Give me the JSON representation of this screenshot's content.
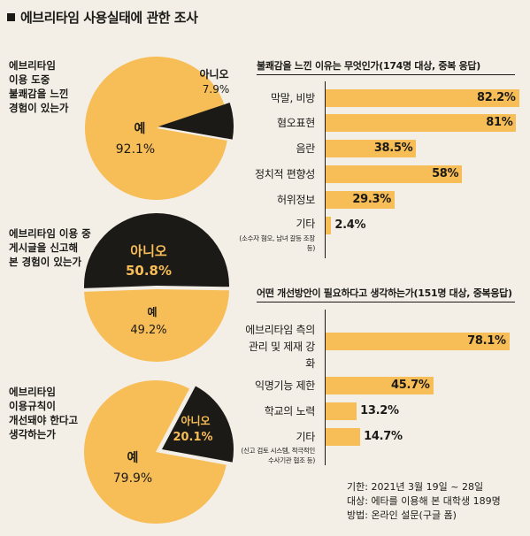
{
  "title": "에브리타임 사용실태에 관한 조사",
  "colors": {
    "yes": "#f7bd56",
    "no": "#1c1a17",
    "bar": "#f7bd56",
    "background": "#f3efe7"
  },
  "chart_data": [
    {
      "type": "pie",
      "question_lines": [
        "에브리타임",
        "이용 도중",
        "불쾌감을 느낀",
        "경험이 있는가"
      ],
      "slices": [
        {
          "label": "예",
          "value": 92.1,
          "value_text": "92.1%"
        },
        {
          "label": "아니오",
          "value": 7.9,
          "value_text": "7.9%"
        }
      ]
    },
    {
      "type": "pie",
      "question_lines": [
        "에브리타임 이용 중",
        "게시글을 신고해",
        "본 경험이 있는가"
      ],
      "slices": [
        {
          "label": "아니오",
          "value": 50.8,
          "value_text": "50.8%"
        },
        {
          "label": "예",
          "value": 49.2,
          "value_text": "49.2%"
        }
      ]
    },
    {
      "type": "pie",
      "question_lines": [
        "에브리타임",
        "이용규칙이",
        "개선돼야 한다고",
        "생각하는가"
      ],
      "slices": [
        {
          "label": "예",
          "value": 79.9,
          "value_text": "79.9%"
        },
        {
          "label": "아니오",
          "value": 20.1,
          "value_text": "20.1%"
        }
      ]
    },
    {
      "type": "bar",
      "title": "불쾌감을 느낀 이유는 무엇인가(174명 대상, 중복 응답)",
      "categories": [
        "막말, 비방",
        "혐오표현",
        "음란",
        "정치적 편향성",
        "허위정보",
        "기타"
      ],
      "category_notes": [
        "",
        "",
        "",
        "",
        "",
        "(소수자 혐오, 남녀 갈등 조장 등)"
      ],
      "values": [
        82.2,
        81,
        38.5,
        58,
        29.3,
        2.4
      ],
      "value_labels": [
        "82.2%",
        "81%",
        "38.5%",
        "58%",
        "29.3%",
        "2.4%"
      ]
    },
    {
      "type": "bar",
      "title": "어떤 개선방안이 필요하다고 생각하는가(151명 대상, 중복응답)",
      "categories": [
        "에브리타임 측의 관리 및 제재 강화",
        "익명기능 제한",
        "학교의 노력",
        "기타"
      ],
      "category_notes": [
        "",
        "",
        "",
        "(신고 검토 시스템, 적극적인 수사기관 협조 등)"
      ],
      "values": [
        78.1,
        45.7,
        13.2,
        14.7
      ],
      "value_labels": [
        "78.1%",
        "45.7%",
        "13.2%",
        "14.7%"
      ]
    }
  ],
  "footer": {
    "period": "기한: 2021년 3월 19일 ~ 28일",
    "target": "대상: 에타를 이용해 본 대학생 189명",
    "method": "방법: 온라인 설문(구글 폼)"
  }
}
